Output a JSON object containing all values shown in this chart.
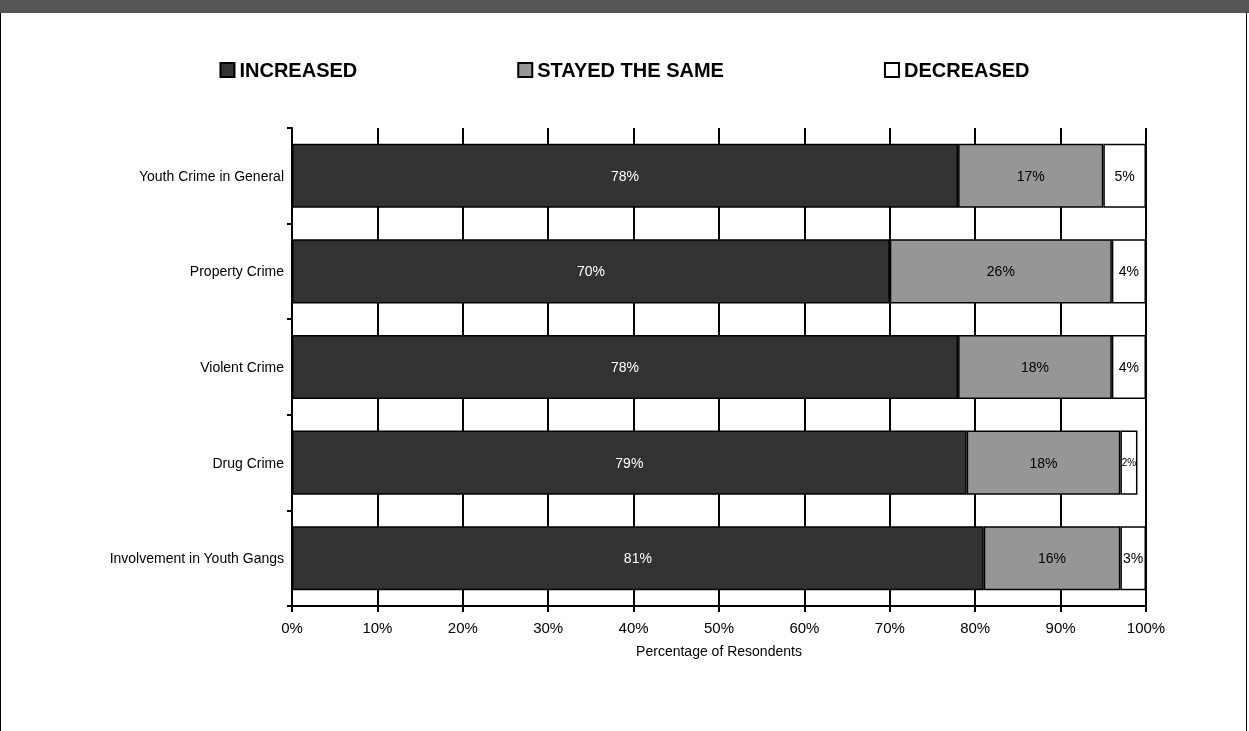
{
  "chart_data": {
    "type": "bar",
    "orientation": "horizontal",
    "stacked": true,
    "xlabel": "Percentage of Resondents",
    "categories": [
      "Youth Crime in General",
      "Property Crime",
      "Violent Crime",
      "Drug Crime",
      "Involvement in Youth Gangs"
    ],
    "series": [
      {
        "name": "INCREASED",
        "color": "#333333",
        "values": [
          78,
          70,
          78,
          79,
          81
        ],
        "value_labels": [
          "78%",
          "70%",
          "78%",
          "79%",
          "81%"
        ]
      },
      {
        "name": "STAYED THE SAME",
        "color": "#969696",
        "values": [
          17,
          26,
          18,
          18,
          16
        ],
        "value_labels": [
          "17%",
          "26%",
          "18%",
          "18%",
          "16%"
        ]
      },
      {
        "name": "DECREASED",
        "color": "#ffffff",
        "values": [
          5,
          4,
          4,
          2,
          3
        ],
        "value_labels": [
          "5%",
          "4%",
          "4%",
          "2%",
          "3%"
        ]
      }
    ],
    "xlim": [
      0,
      100
    ],
    "xticks": [
      {
        "value": 0,
        "label": "0%"
      },
      {
        "value": 10,
        "label": "10%"
      },
      {
        "value": 20,
        "label": "20%"
      },
      {
        "value": 30,
        "label": "30%"
      },
      {
        "value": 40,
        "label": "40%"
      },
      {
        "value": 50,
        "label": "50%"
      },
      {
        "value": 60,
        "label": "60%"
      },
      {
        "value": 70,
        "label": "70%"
      },
      {
        "value": 80,
        "label": "80%"
      },
      {
        "value": 90,
        "label": "90%"
      },
      {
        "value": 100,
        "label": "100%"
      }
    ],
    "grid": "x",
    "legend": "top"
  }
}
